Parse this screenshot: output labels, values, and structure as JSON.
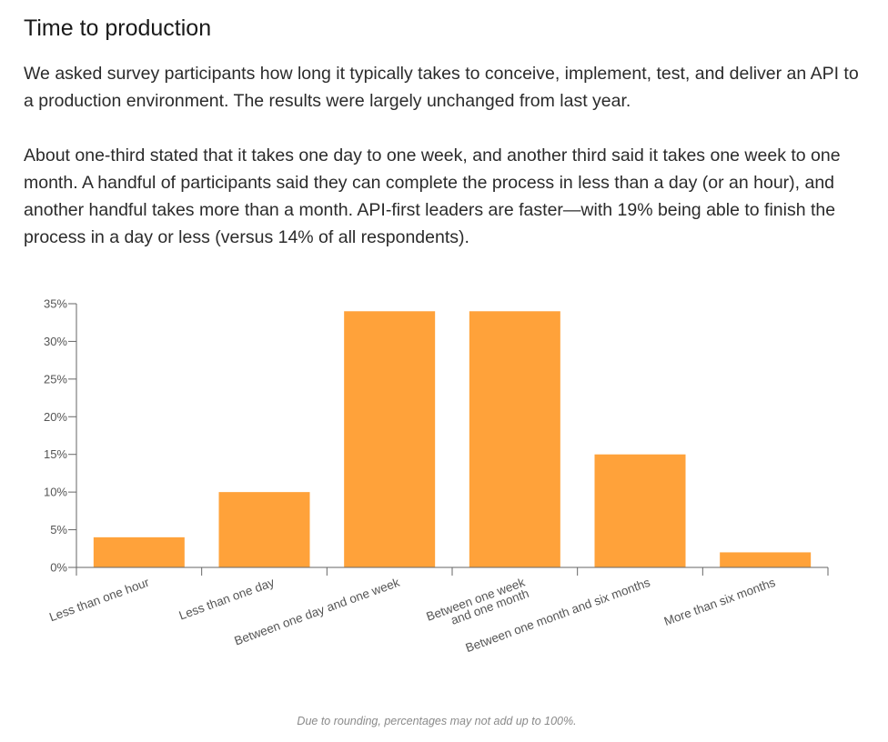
{
  "header": {
    "title": "Time to production"
  },
  "body": {
    "paragraph_1": "We asked survey participants how long it typically takes to conceive, implement, test, and deliver an API to a production environment. The results were largely unchanged from last year.",
    "paragraph_2": "About one-third stated that it takes one day to one week, and another third said it takes one week to one month. A handful of participants said they can complete the process in less than a day (or an hour), and another handful takes more than a month. API-first leaders are faster—with 19% being able to finish the process in a day or less (versus 14% of all respondents)."
  },
  "chart_data": {
    "type": "bar",
    "categories": [
      "Less than one hour",
      "Less than one day",
      "Between one day and one week",
      "Between one week and one month",
      "Between one month and six months",
      "More than six months"
    ],
    "category_label_lines": [
      [
        "Less than one hour"
      ],
      [
        "Less than one day"
      ],
      [
        "Between one day and one week"
      ],
      [
        "Between one week",
        "and one month"
      ],
      [
        "Between one month and six months"
      ],
      [
        "More than six months"
      ]
    ],
    "values": [
      4,
      10,
      34,
      34,
      15,
      2
    ],
    "ylim": [
      0,
      35
    ],
    "yticks": [
      0,
      5,
      10,
      15,
      20,
      25,
      30,
      35
    ],
    "ytick_labels": [
      "0%",
      "5%",
      "10%",
      "15%",
      "20%",
      "25%",
      "30%",
      "35%"
    ],
    "title": "",
    "xlabel": "",
    "ylabel": "",
    "grid": false,
    "bar_color": "#FFA23A",
    "axis_color": "#666666"
  },
  "footnote": "Due to rounding, percentages may not add up to 100%."
}
